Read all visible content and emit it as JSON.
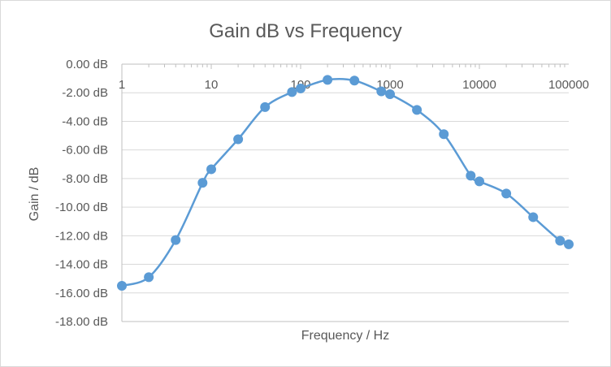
{
  "chart_data": {
    "type": "line",
    "title": "Gain dB vs Frequency",
    "xlabel": "Frequency / Hz",
    "ylabel": "Gain / dB",
    "x_scale": "log",
    "xlim": [
      1,
      100000
    ],
    "ylim": [
      -18,
      0
    ],
    "x_tick_labels": [
      "1",
      "10",
      "100",
      "1000",
      "10000",
      "100000"
    ],
    "y_tick_labels": [
      "0.00 dB",
      "-2.00 dB",
      "-4.00 dB",
      "-6.00 dB",
      "-8.00 dB",
      "-10.00 dB",
      "-12.00 dB",
      "-14.00 dB",
      "-16.00 dB",
      "-18.00 dB"
    ],
    "grid": "horizontal",
    "legend": "none",
    "series": [
      {
        "color": "#5b9bd5",
        "marker": "circle",
        "smooth": true,
        "x": [
          1,
          2,
          4,
          8,
          10,
          20,
          40,
          80,
          100,
          200,
          400,
          800,
          1000,
          2000,
          4000,
          8000,
          10000,
          20000,
          40000,
          80000,
          100000
        ],
        "y": [
          -15.5,
          -14.9,
          -12.3,
          -8.3,
          -7.35,
          -5.25,
          -3.0,
          -1.95,
          -1.7,
          -1.1,
          -1.15,
          -1.9,
          -2.1,
          -3.2,
          -4.9,
          -7.8,
          -8.2,
          -9.05,
          -10.7,
          -12.35,
          -12.6
        ]
      }
    ]
  }
}
